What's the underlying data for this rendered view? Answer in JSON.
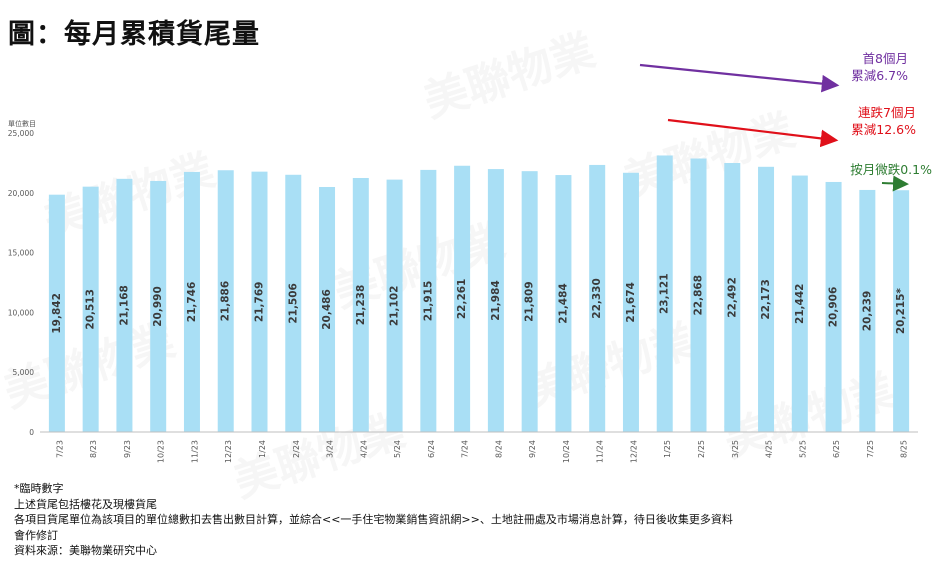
{
  "title": "圖：每月累積貨尾量",
  "watermark_text": "美聯物業",
  "chart_data": {
    "type": "bar",
    "title": "圖：每月累積貨尾量",
    "ylabel": "單位數目",
    "xlabel": "",
    "ylim": [
      0,
      25000
    ],
    "yticks": [
      "0",
      "5,000",
      "10,000",
      "15,000",
      "20,000",
      "25,000"
    ],
    "ytick_values": [
      0,
      5000,
      10000,
      15000,
      20000,
      25000
    ],
    "grid": false,
    "bar_color": "#a9dff5",
    "categories": [
      "7/23",
      "8/23",
      "9/23",
      "10/23",
      "11/23",
      "12/23",
      "1/24",
      "2/24",
      "3/24",
      "4/24",
      "5/24",
      "6/24",
      "7/24",
      "8/24",
      "9/24",
      "10/24",
      "11/24",
      "12/24",
      "1/25",
      "2/25",
      "3/25",
      "4/25",
      "5/25",
      "6/25",
      "7/25",
      "8/25"
    ],
    "values": [
      19842,
      20513,
      21168,
      20990,
      21746,
      21886,
      21769,
      21506,
      20486,
      21238,
      21102,
      21915,
      22261,
      21984,
      21809,
      21484,
      22330,
      21674,
      23121,
      22868,
      22492,
      22173,
      21442,
      20906,
      20239,
      20215
    ],
    "data_labels": [
      "19,842",
      "20,513",
      "21,168",
      "20,990",
      "21,746",
      "21,886",
      "21,769",
      "21,506",
      "20,486",
      "21,238",
      "21,102",
      "21,915",
      "22,261",
      "21,984",
      "21,809",
      "21,484",
      "22,330",
      "21,674",
      "23,121",
      "22,868",
      "22,492",
      "22,173",
      "21,442",
      "20,906",
      "20,239",
      "20,215*"
    ],
    "annotations": [
      {
        "lines": [
          "首8個月",
          "累減6.7%"
        ],
        "color": "#7030a0"
      },
      {
        "lines": [
          "連跌7個月",
          "累減12.6%"
        ],
        "color": "#e0101a"
      },
      {
        "lines": [
          "按月微跌0.1%"
        ],
        "color": "#2e7d32"
      }
    ]
  },
  "notes": [
    "*臨時數字",
    "上述貨尾包括樓花及現樓貨尾",
    "各項目貨尾單位為該項目的單位總數扣去售出數目計算，並綜合<<一手住宅物業銷售資訊網>>、土地註冊處及市場消息計算，待日後收集更多資料",
    "會作修訂",
    "資料來源：美聯物業研究中心"
  ]
}
